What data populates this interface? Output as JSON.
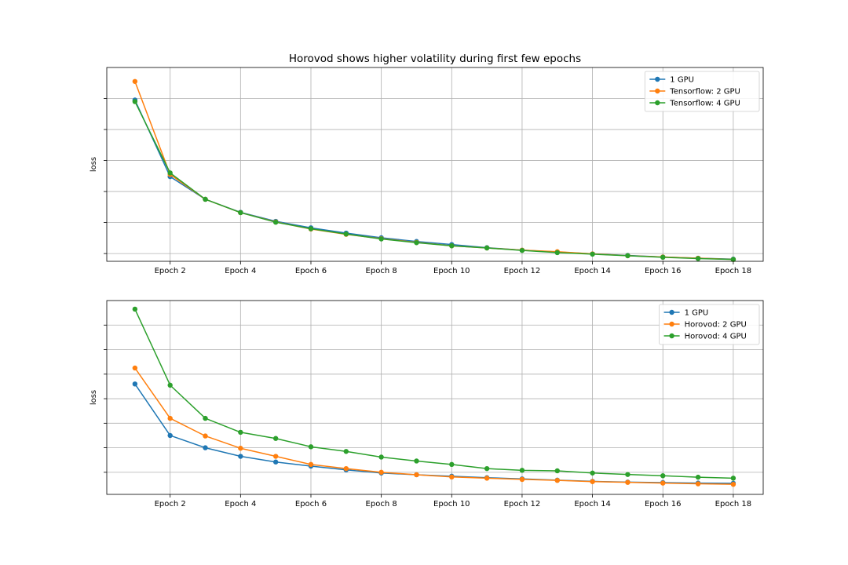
{
  "chart_data": [
    {
      "type": "line",
      "title": "Horovod shows higher volatility during first few epochs",
      "xlabel": "",
      "ylabel": "loss",
      "x": [
        1,
        2,
        3,
        4,
        5,
        6,
        7,
        8,
        9,
        10,
        11,
        12,
        13,
        14,
        15,
        16,
        17,
        18
      ],
      "xticks": [
        2,
        4,
        6,
        8,
        10,
        12,
        14,
        16,
        18
      ],
      "xtick_labels": [
        "Epoch 2",
        "Epoch 4",
        "Epoch 6",
        "Epoch 8",
        "Epoch 10",
        "Epoch 12",
        "Epoch 14",
        "Epoch 16",
        "Epoch 18"
      ],
      "xlim": [
        0.2,
        18.85
      ],
      "ylim": [
        0.475,
        1.1
      ],
      "yticks": [
        0.5,
        0.6,
        0.7,
        0.8,
        0.9,
        1.0
      ],
      "grid": true,
      "legend_position": "upper-right",
      "series": [
        {
          "name": "1 GPU",
          "color": "#1f77b4",
          "values": [
            0.995,
            0.748,
            0.675,
            0.633,
            0.604,
            0.583,
            0.566,
            0.551,
            0.539,
            0.529,
            0.519,
            0.511,
            0.505,
            0.499,
            0.494,
            0.489,
            0.485,
            0.482
          ]
        },
        {
          "name": "Tensorflow: 2 GPU",
          "color": "#ff7f0e",
          "values": [
            1.055,
            0.755,
            0.675,
            0.632,
            0.602,
            0.579,
            0.562,
            0.548,
            0.536,
            0.525,
            0.518,
            0.511,
            0.506,
            0.499,
            0.493,
            0.489,
            0.485,
            0.481
          ]
        },
        {
          "name": "Tensorflow: 4 GPU",
          "color": "#2ca02c",
          "values": [
            0.99,
            0.76,
            0.675,
            0.632,
            0.601,
            0.58,
            0.563,
            0.547,
            0.535,
            0.525,
            0.518,
            0.51,
            0.503,
            0.498,
            0.493,
            0.488,
            0.484,
            0.481
          ]
        }
      ]
    },
    {
      "type": "line",
      "title": "",
      "xlabel": "",
      "ylabel": "loss",
      "x": [
        1,
        2,
        3,
        4,
        5,
        6,
        7,
        8,
        9,
        10,
        11,
        12,
        13,
        14,
        15,
        16,
        17,
        18
      ],
      "xticks": [
        2,
        4,
        6,
        8,
        10,
        12,
        14,
        16,
        18
      ],
      "xtick_labels": [
        "Epoch 2",
        "Epoch 4",
        "Epoch 6",
        "Epoch 8",
        "Epoch 10",
        "Epoch 12",
        "Epoch 14",
        "Epoch 16",
        "Epoch 18"
      ],
      "xlim": [
        0.2,
        18.85
      ],
      "ylim": [
        0.41,
        1.2
      ],
      "yticks": [
        0.5,
        0.6,
        0.7,
        0.8,
        0.9,
        1.0,
        1.1
      ],
      "grid": true,
      "legend_position": "upper-right",
      "series": [
        {
          "name": "1 GPU",
          "color": "#1f77b4",
          "values": [
            0.86,
            0.65,
            0.6,
            0.565,
            0.542,
            0.525,
            0.51,
            0.497,
            0.49,
            0.484,
            0.478,
            0.473,
            0.468,
            0.463,
            0.46,
            0.458,
            0.456,
            0.455
          ]
        },
        {
          "name": "Horovod: 2 GPU",
          "color": "#ff7f0e",
          "values": [
            0.925,
            0.72,
            0.648,
            0.598,
            0.565,
            0.532,
            0.515,
            0.5,
            0.49,
            0.481,
            0.476,
            0.471,
            0.467,
            0.462,
            0.459,
            0.456,
            0.453,
            0.451
          ]
        },
        {
          "name": "Horovod: 4 GPU",
          "color": "#2ca02c",
          "values": [
            1.165,
            0.855,
            0.72,
            0.663,
            0.638,
            0.604,
            0.585,
            0.562,
            0.546,
            0.532,
            0.515,
            0.508,
            0.506,
            0.497,
            0.491,
            0.486,
            0.48,
            0.476
          ]
        }
      ]
    }
  ]
}
